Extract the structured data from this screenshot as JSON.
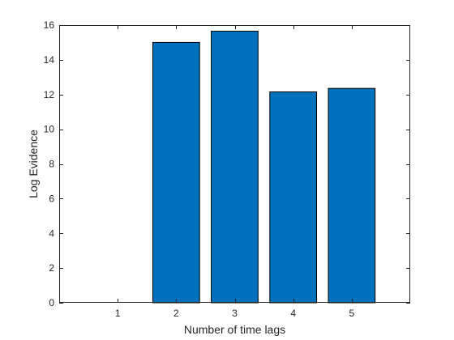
{
  "chart_data": {
    "type": "bar",
    "categories": [
      "1",
      "2",
      "3",
      "4",
      "5"
    ],
    "values": [
      0,
      15.0,
      15.65,
      12.15,
      12.35
    ],
    "title": "",
    "xlabel": "Number of time lags",
    "ylabel": "Log Evidence",
    "xlim": [
      0,
      6
    ],
    "ylim": [
      0,
      16
    ],
    "yticks": [
      0,
      2,
      4,
      6,
      8,
      10,
      12,
      14,
      16
    ],
    "grid": false,
    "bar_color": "#0072BD",
    "bar_edge_color": "#000000"
  }
}
